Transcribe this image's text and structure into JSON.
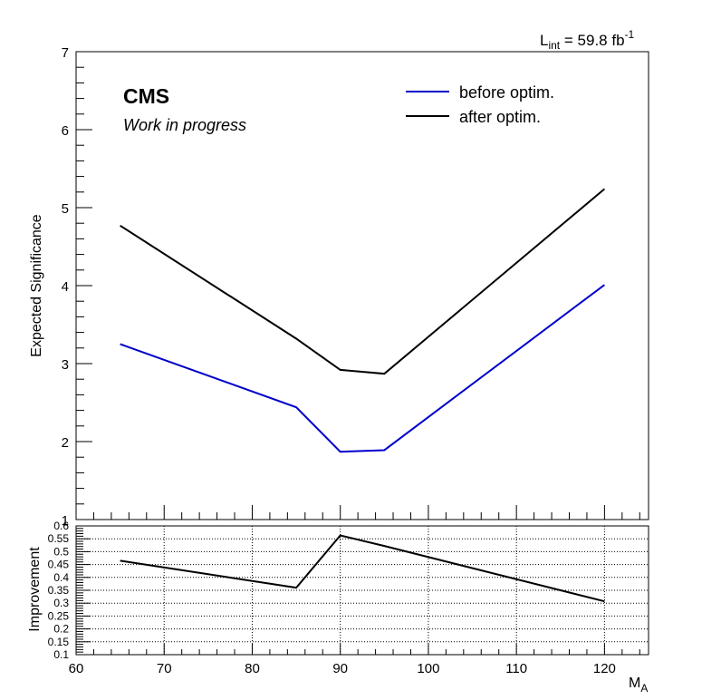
{
  "header": {
    "lumi_main": "L",
    "lumi_sub": "int",
    "lumi_value": " = 59.8 fb",
    "lumi_sup": "-1"
  },
  "labels": {
    "experiment": "CMS",
    "status": "Work in progress"
  },
  "chart_data": [
    {
      "type": "line",
      "ylabel": "Expected Significance",
      "xlim": [
        60,
        125
      ],
      "ylim": [
        1,
        7
      ],
      "grid": false,
      "legend_position": "top-right",
      "x": [
        65,
        85,
        90,
        95,
        120
      ],
      "series": [
        {
          "name": "before optim.",
          "color": "#0000cc",
          "values": [
            3.25,
            2.44,
            1.87,
            1.89,
            4.01
          ]
        },
        {
          "name": "after optim.",
          "color": "#000000",
          "values": [
            4.77,
            3.32,
            2.92,
            2.87,
            5.24
          ]
        }
      ],
      "yticks": [
        "1",
        "2",
        "3",
        "4",
        "5",
        "6",
        "7"
      ]
    },
    {
      "type": "line",
      "xlabel": "M",
      "xlabel_sub": "A",
      "ylabel": "Improvement",
      "xlim": [
        60,
        125
      ],
      "ylim": [
        0.1,
        0.6
      ],
      "grid": true,
      "x": [
        65,
        85,
        90,
        95,
        120
      ],
      "series": [
        {
          "color": "#000000",
          "values": [
            0.465,
            0.36,
            0.563,
            0.522,
            0.307
          ]
        }
      ],
      "xticks": [
        "60",
        "70",
        "80",
        "90",
        "100",
        "110",
        "120"
      ],
      "yticks": [
        "0.1",
        "0.15",
        "0.2",
        "0.25",
        "0.3",
        "0.35",
        "0.4",
        "0.45",
        "0.5",
        "0.55",
        "0.6"
      ]
    }
  ]
}
